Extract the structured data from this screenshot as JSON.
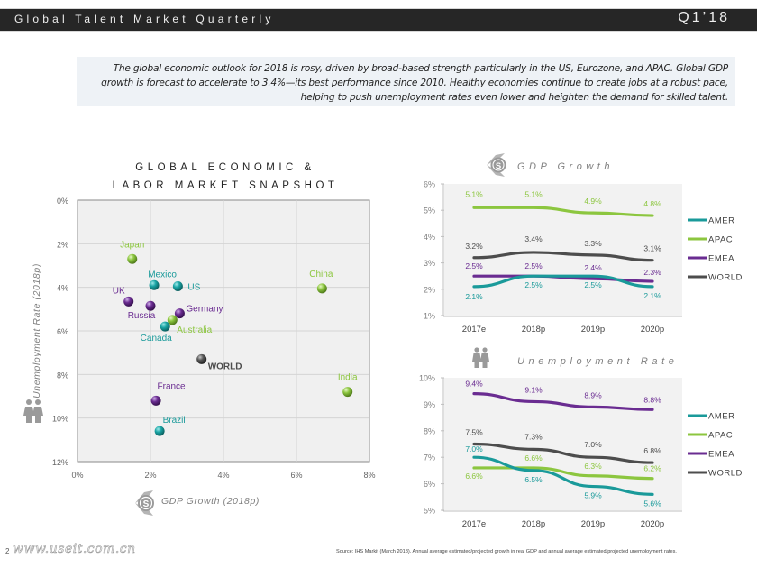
{
  "header": {
    "title": "Global Talent Market Quarterly",
    "quarter": "Q1’18"
  },
  "intro": {
    "text": "The global economic outlook for 2018 is rosy, driven by broad-based strength particularly in the US, Eurozone, and APAC. Global GDP growth is forecast to accelerate to 3.4%—its best performance since 2010. Healthy economies continue to create jobs at a robust pace, helping to push unemployment rates even lower and heighten the demand for skilled talent."
  },
  "colors": {
    "AMER": "#1a9a9a",
    "APAC": "#8cc63f",
    "EMEA": "#6a2c91",
    "WORLD": "#4d4d4d",
    "icon_gray": "#9a9a9a"
  },
  "icons": {
    "gdp": "dollar-coin-icon",
    "unemployment": "people-icon"
  },
  "chart_data": [
    {
      "type": "scatter",
      "title_line1": "GLOBAL ECONOMIC &",
      "title_line2": "LABOR MARKET SNAPSHOT",
      "xlabel": "GDP Growth (2018p)",
      "ylabel": "Unemployment Rate (2018p)",
      "xlim": [
        0,
        8
      ],
      "ylim": [
        0,
        12
      ],
      "y_inverted": true,
      "x_ticks": [
        "0%",
        "2%",
        "4%",
        "6%",
        "8%"
      ],
      "y_ticks": [
        "0%",
        "2%",
        "4%",
        "6%",
        "8%",
        "10%",
        "12%"
      ],
      "grid": true,
      "points": [
        {
          "label": "Japan",
          "x": 1.5,
          "y": 2.7,
          "region": "APAC"
        },
        {
          "label": "Mexico",
          "x": 2.1,
          "y": 3.9,
          "region": "AMER"
        },
        {
          "label": "US",
          "x": 2.75,
          "y": 3.95,
          "region": "AMER"
        },
        {
          "label": "UK",
          "x": 1.4,
          "y": 4.65,
          "region": "EMEA"
        },
        {
          "label": "Russia",
          "x": 2.0,
          "y": 4.85,
          "region": "EMEA"
        },
        {
          "label": "Germany",
          "x": 2.8,
          "y": 5.2,
          "region": "EMEA"
        },
        {
          "label": "Australia",
          "x": 2.6,
          "y": 5.5,
          "region": "APAC"
        },
        {
          "label": "Canada",
          "x": 2.4,
          "y": 5.8,
          "region": "AMER"
        },
        {
          "label": "WORLD",
          "x": 3.4,
          "y": 7.3,
          "region": "WORLD"
        },
        {
          "label": "France",
          "x": 2.15,
          "y": 9.2,
          "region": "EMEA"
        },
        {
          "label": "Brazil",
          "x": 2.25,
          "y": 10.6,
          "region": "AMER"
        },
        {
          "label": "China",
          "x": 6.7,
          "y": 4.05,
          "region": "APAC"
        },
        {
          "label": "India",
          "x": 7.4,
          "y": 8.8,
          "region": "APAC"
        }
      ]
    },
    {
      "type": "line",
      "title": "GDP Growth",
      "categories": [
        "2017e",
        "2018p",
        "2019p",
        "2020p"
      ],
      "ylim": [
        1,
        6
      ],
      "y_ticks": [
        "1%",
        "2%",
        "3%",
        "4%",
        "5%",
        "6%"
      ],
      "legend": "right",
      "series": [
        {
          "name": "AMER",
          "values": [
            2.1,
            2.5,
            2.5,
            2.1
          ],
          "labels": [
            "2.1%",
            "2.5%",
            "2.5%",
            "2.1%"
          ]
        },
        {
          "name": "APAC",
          "values": [
            5.1,
            5.1,
            4.9,
            4.8
          ],
          "labels": [
            "5.1%",
            "5.1%",
            "4.9%",
            "4.8%"
          ]
        },
        {
          "name": "EMEA",
          "values": [
            2.5,
            2.5,
            2.4,
            2.3
          ],
          "labels": [
            "2.5%",
            "2.5%",
            "2.4%",
            "2.3%"
          ]
        },
        {
          "name": "WORLD",
          "values": [
            3.2,
            3.4,
            3.3,
            3.1
          ],
          "labels": [
            "3.2%",
            "3.4%",
            "3.3%",
            "3.1%"
          ]
        }
      ]
    },
    {
      "type": "line",
      "title": "Unemployment Rate",
      "categories": [
        "2017e",
        "2018p",
        "2019p",
        "2020p"
      ],
      "ylim": [
        5,
        10
      ],
      "y_ticks": [
        "5%",
        "6%",
        "7%",
        "8%",
        "9%",
        "10%"
      ],
      "legend": "right",
      "series": [
        {
          "name": "AMER",
          "values": [
            7.0,
            6.5,
            5.9,
            5.6
          ],
          "labels": [
            "7.0%",
            "6.5%",
            "5.9%",
            "5.6%"
          ]
        },
        {
          "name": "APAC",
          "values": [
            6.6,
            6.6,
            6.3,
            6.2
          ],
          "labels": [
            "6.6%",
            "6.6%",
            "6.3%",
            "6.2%"
          ]
        },
        {
          "name": "EMEA",
          "values": [
            9.4,
            9.1,
            8.9,
            8.8
          ],
          "labels": [
            "9.4%",
            "9.1%",
            "8.9%",
            "8.8%"
          ]
        },
        {
          "name": "WORLD",
          "values": [
            7.5,
            7.3,
            7.0,
            6.8
          ],
          "labels": [
            "7.5%",
            "7.3%",
            "7.0%",
            "6.8%"
          ]
        }
      ]
    }
  ],
  "footer": {
    "page_number": "2",
    "watermark": "www.useit.com.cn",
    "source": "Source: IHS Markit (March 2018). Annual average estimated/projected growth in real GDP and annual average estimated/projected unemployment rates."
  }
}
